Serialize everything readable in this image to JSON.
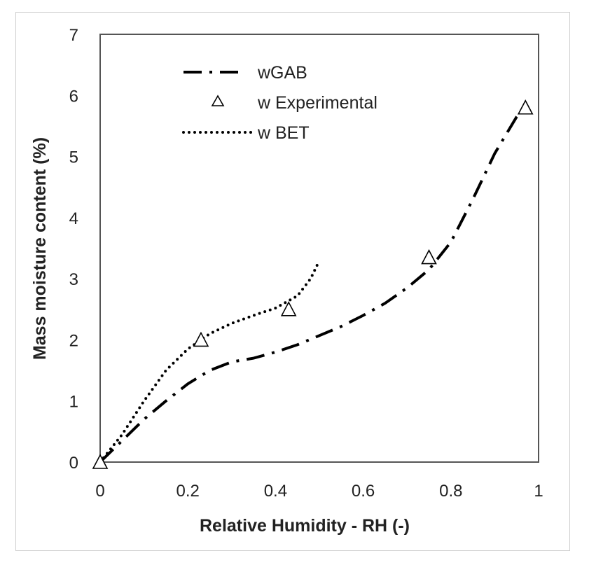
{
  "chart_data": {
    "type": "line",
    "title": "",
    "xlabel": "Relative Humidity - RH (-)",
    "ylabel": "Mass moisture content (%)",
    "xlim": [
      0,
      1
    ],
    "ylim": [
      0,
      7
    ],
    "grid": false,
    "legend_position": "top-left",
    "x_ticks": [
      0,
      0.2,
      0.4,
      0.6,
      0.8,
      1
    ],
    "x_tick_labels": [
      "0",
      "0.2",
      "0.4",
      "0.6",
      "0.8",
      "1"
    ],
    "y_ticks": [
      0,
      1,
      2,
      3,
      4,
      5,
      6,
      7
    ],
    "y_tick_labels": [
      "0",
      "1",
      "2",
      "3",
      "4",
      "5",
      "6",
      "7"
    ],
    "series": [
      {
        "name": "wGAB",
        "style": "dash-dot",
        "color": "#000000",
        "x": [
          0,
          0.05,
          0.1,
          0.15,
          0.2,
          0.25,
          0.3,
          0.35,
          0.4,
          0.45,
          0.5,
          0.55,
          0.6,
          0.65,
          0.7,
          0.75,
          0.8,
          0.85,
          0.9,
          0.95,
          0.97
        ],
        "y": [
          0,
          0.35,
          0.7,
          1.0,
          1.28,
          1.5,
          1.64,
          1.7,
          1.8,
          1.92,
          2.07,
          2.22,
          2.4,
          2.6,
          2.85,
          3.15,
          3.6,
          4.3,
          5.05,
          5.65,
          5.85
        ]
      },
      {
        "name": "w Experimental",
        "style": "markers",
        "marker": "triangle",
        "color": "#000000",
        "x": [
          0,
          0.23,
          0.43,
          0.75,
          0.97
        ],
        "y": [
          0,
          2.0,
          2.5,
          3.35,
          5.8
        ]
      },
      {
        "name": "w BET",
        "style": "dotted",
        "color": "#000000",
        "x": [
          0,
          0.05,
          0.1,
          0.15,
          0.2,
          0.25,
          0.3,
          0.35,
          0.4,
          0.45,
          0.48,
          0.5
        ],
        "y": [
          0,
          0.45,
          1.0,
          1.5,
          1.85,
          2.1,
          2.27,
          2.4,
          2.52,
          2.72,
          3.0,
          3.3
        ]
      }
    ]
  }
}
